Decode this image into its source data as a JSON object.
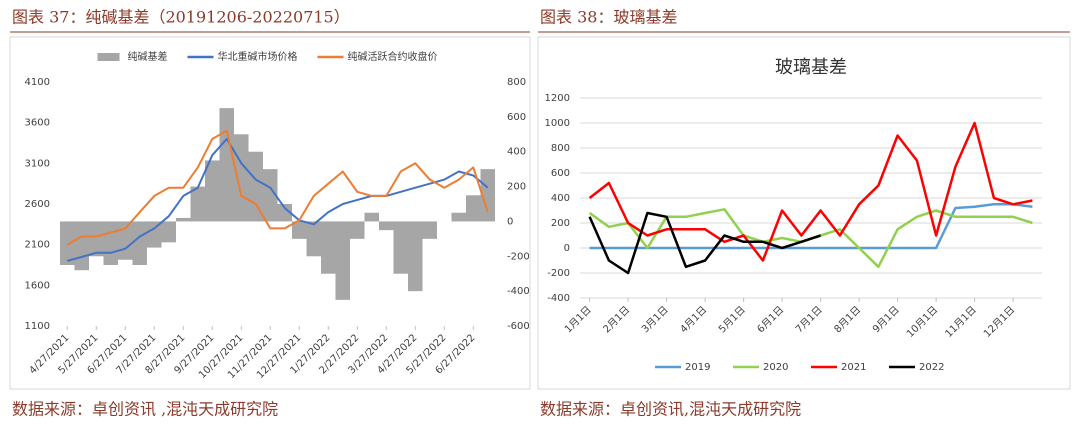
{
  "chart_data": [
    {
      "type": "combo",
      "caption": "图表 37：纯碱基差（20191206-20220715）",
      "source": "数据来源：卓创资讯 ,混沌天成研究院",
      "legend": "top",
      "grid": false,
      "categories": [
        "4/27/2021",
        null,
        "5/27/2021",
        null,
        "6/27/2021",
        null,
        "7/27/2021",
        null,
        "8/27/2021",
        null,
        "9/27/2021",
        null,
        "10/27/2021",
        null,
        "11/27/2021",
        null,
        "12/27/2021",
        null,
        "1/27/2022",
        null,
        "2/27/2022",
        null,
        "3/27/2022",
        null,
        "4/27/2022",
        null,
        "5/27/2022",
        null,
        "6/27/2022",
        null
      ],
      "ylim": [
        1100,
        4100
      ],
      "yticks": [
        1100,
        1600,
        2100,
        2600,
        3100,
        3600,
        4100
      ],
      "y2lim": [
        -600,
        800
      ],
      "y2ticks": [
        -600,
        -400,
        -200,
        0,
        200,
        400,
        600,
        800
      ],
      "series": [
        {
          "name": "纯碱基差",
          "type": "area",
          "axis": "y2",
          "color": "#a6a6a6",
          "values": [
            -250,
            -280,
            -200,
            -250,
            -220,
            -250,
            -150,
            -120,
            20,
            200,
            350,
            650,
            500,
            400,
            300,
            100,
            -100,
            -200,
            -300,
            -450,
            -100,
            50,
            -50,
            -300,
            -400,
            -100,
            0,
            50,
            150,
            300
          ]
        },
        {
          "name": "华北重碱市场价格",
          "type": "line",
          "axis": "y",
          "color": "#4472c4",
          "values": [
            1900,
            1950,
            2000,
            2000,
            2050,
            2200,
            2300,
            2450,
            2700,
            2800,
            3200,
            3400,
            3100,
            2900,
            2800,
            2550,
            2400,
            2350,
            2500,
            2600,
            2650,
            2700,
            2700,
            2750,
            2800,
            2850,
            2900,
            3000,
            2950,
            2800
          ]
        },
        {
          "name": "纯碱活跃合约收盘价",
          "type": "line",
          "axis": "y",
          "color": "#ed7d31",
          "values": [
            2100,
            2200,
            2200,
            2250,
            2300,
            2500,
            2700,
            2800,
            2800,
            3050,
            3400,
            3500,
            2700,
            2600,
            2300,
            2300,
            2400,
            2700,
            2850,
            3000,
            2750,
            2700,
            2700,
            3000,
            3100,
            2900,
            2800,
            2900,
            3050,
            2500
          ]
        }
      ]
    },
    {
      "type": "line",
      "caption": "图表 38：玻璃基差",
      "source": "数据来源：卓创资讯,混沌天成研究院",
      "title": "玻璃基差",
      "legend": "bottom",
      "grid": true,
      "categories": [
        "1月1日",
        null,
        "2月1日",
        null,
        "3月1日",
        null,
        "4月1日",
        null,
        "5月1日",
        null,
        "6月1日",
        null,
        "7月1日",
        null,
        "8月1日",
        null,
        "9月1日",
        null,
        "10月1日",
        null,
        "11月1日",
        null,
        "12月1日",
        null
      ],
      "ylim": [
        -400,
        1200
      ],
      "yticks": [
        -400,
        -200,
        0,
        200,
        400,
        600,
        800,
        1000,
        1200
      ],
      "series": [
        {
          "name": "2019",
          "color": "#5b9bd5",
          "values": [
            0,
            0,
            0,
            0,
            0,
            0,
            0,
            0,
            0,
            0,
            0,
            0,
            0,
            0,
            0,
            0,
            0,
            0,
            0,
            320,
            330,
            350,
            350,
            330
          ]
        },
        {
          "name": "2020",
          "color": "#92d050",
          "values": [
            280,
            170,
            200,
            0,
            250,
            250,
            280,
            310,
            100,
            50,
            80,
            50,
            100,
            150,
            0,
            -150,
            150,
            250,
            300,
            250,
            250,
            250,
            250,
            200
          ]
        },
        {
          "name": "2021",
          "color": "#ff0000",
          "values": [
            400,
            520,
            200,
            100,
            150,
            150,
            150,
            50,
            100,
            -100,
            300,
            100,
            300,
            100,
            350,
            500,
            900,
            700,
            100,
            650,
            1000,
            400,
            350,
            380
          ]
        },
        {
          "name": "2022",
          "color": "#000000",
          "values": [
            250,
            -100,
            -200,
            280,
            250,
            -150,
            -100,
            100,
            50,
            50,
            0,
            50,
            100,
            null,
            null,
            null,
            null,
            null,
            null,
            null,
            null,
            null,
            null,
            null
          ]
        }
      ]
    }
  ]
}
